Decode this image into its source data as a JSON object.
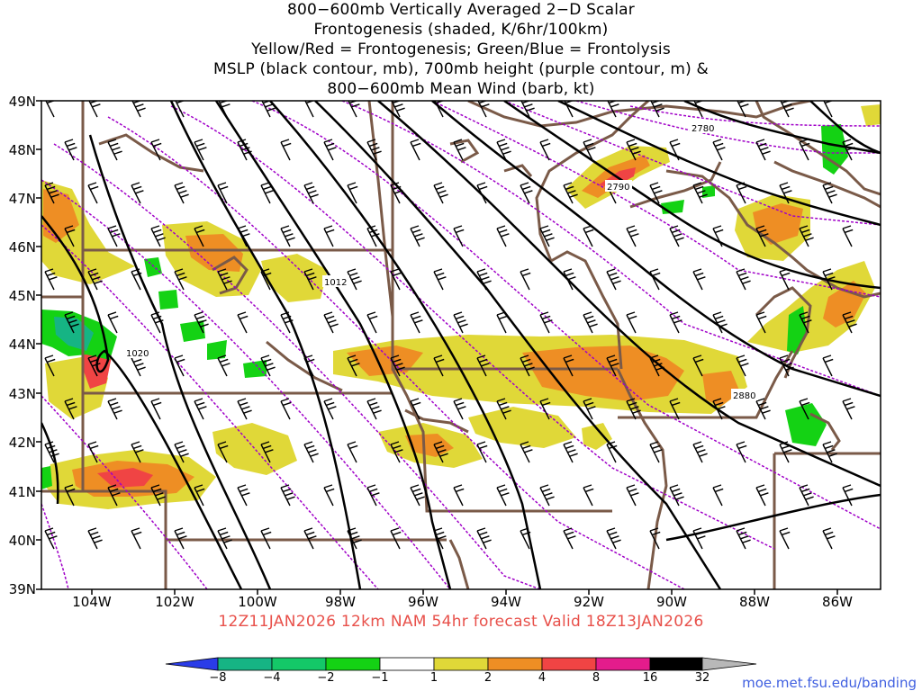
{
  "title": {
    "lines": [
      "800−600mb Vertically Averaged 2−D Scalar",
      "Frontogenesis (shaded, K/6hr/100km)",
      "Yellow/Red = Frontogenesis;  Green/Blue = Frontolysis",
      "MSLP (black contour, mb), 700mb height (purple contour, m) &",
      "800−600mb Mean Wind (barb, kt)"
    ]
  },
  "axes": {
    "lat_labels": [
      "49N",
      "48N",
      "47N",
      "46N",
      "45N",
      "44N",
      "43N",
      "42N",
      "41N",
      "40N",
      "39N"
    ],
    "lon_labels": [
      "104W",
      "102W",
      "100W",
      "98W",
      "96W",
      "94W",
      "92W",
      "90W",
      "88W",
      "86W"
    ]
  },
  "contour_labels": {
    "mslp": [
      "1012",
      "1020"
    ],
    "height": [
      "2780",
      "2790",
      "2880"
    ]
  },
  "footer": {
    "forecast": "12Z11JAN2026 12km NAM 54hr forecast Valid 18Z13JAN2026"
  },
  "colorbar": {
    "labels": [
      "−8",
      "−4",
      "−2",
      "−1",
      "1",
      "2",
      "4",
      "8",
      "16",
      "32"
    ],
    "colors": [
      "#2a3ce8",
      "#16b484",
      "#14c868",
      "#14d214",
      "#ffffff",
      "#e0d838",
      "#ee8e24",
      "#f04444",
      "#e41c8c",
      "#000000"
    ],
    "credit": "moe.met.fsu.edu/banding"
  },
  "colors": {
    "mslp_contour": "#000000",
    "height_contour": "#a000c8",
    "borders": "#7a5a48",
    "frontogenesis_weak": "#e0d838",
    "frontogenesis_moderate": "#ee8e24",
    "frontogenesis_strong": "#f04444",
    "frontolysis": "#14d214"
  }
}
